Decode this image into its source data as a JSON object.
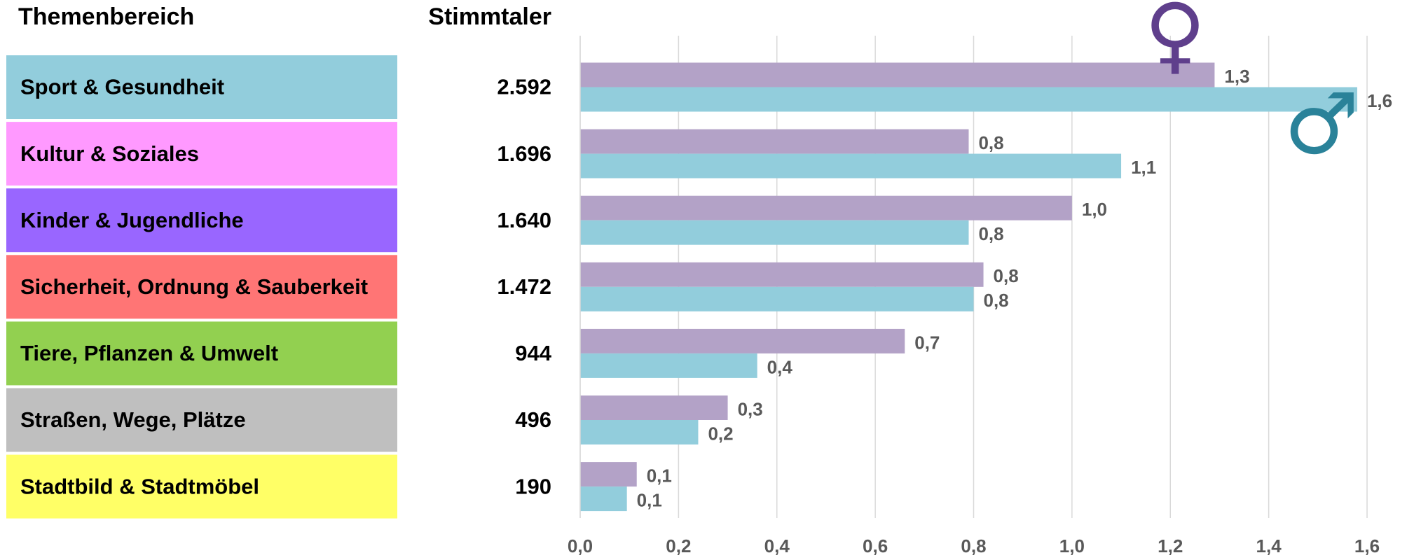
{
  "chart_data": {
    "type": "bar",
    "orientation": "horizontal",
    "category_header": "Themenbereich",
    "count_header": "Stimmtaler",
    "categories": [
      "Sport & Gesundheit",
      "Kultur & Soziales",
      "Kinder & Jugendliche",
      "Sicherheit, Ordnung & Sauberkeit",
      "Tiere, Pflanzen & Umwelt",
      "Straßen, Wege, Plätze",
      "Stadtbild & Stadtmöbel"
    ],
    "category_colors": [
      "#92cddc",
      "#ff99ff",
      "#9966ff",
      "#ff7575",
      "#92d050",
      "#bfbfbf",
      "#ffff66"
    ],
    "stimmtaler": [
      "2.592",
      "1.696",
      "1.640",
      "1.472",
      "944",
      "496",
      "190"
    ],
    "series": [
      {
        "name": "♀",
        "color": "#b3a2c7",
        "symbol_color": "#5f3f8c",
        "values": [
          1.29,
          0.79,
          1.0,
          0.82,
          0.66,
          0.3,
          0.115
        ],
        "value_labels": [
          "1,3",
          "0,8",
          "1,0",
          "0,8",
          "0,7",
          "0,3",
          "0,1"
        ]
      },
      {
        "name": "♂",
        "color": "#92cddc",
        "symbol_color": "#2a8299",
        "values": [
          1.58,
          1.1,
          0.79,
          0.8,
          0.36,
          0.24,
          0.095
        ],
        "value_labels": [
          "1,6",
          "1,1",
          "0,8",
          "0,8",
          "0,4",
          "0,2",
          "0,1"
        ]
      }
    ],
    "xlim": [
      0,
      1.6
    ],
    "xticks": [
      {
        "value": 0,
        "label": "0,0"
      },
      {
        "value": 0.2,
        "label": "0,2"
      },
      {
        "value": 0.4,
        "label": "0,4"
      },
      {
        "value": 0.6,
        "label": "0,6"
      },
      {
        "value": 0.8,
        "label": "0,8"
      },
      {
        "value": 1.0,
        "label": "1,0"
      },
      {
        "value": 1.2,
        "label": "1,2"
      },
      {
        "value": 1.4,
        "label": "1,4"
      },
      {
        "value": 1.6,
        "label": "1,6"
      }
    ],
    "grid": true
  }
}
